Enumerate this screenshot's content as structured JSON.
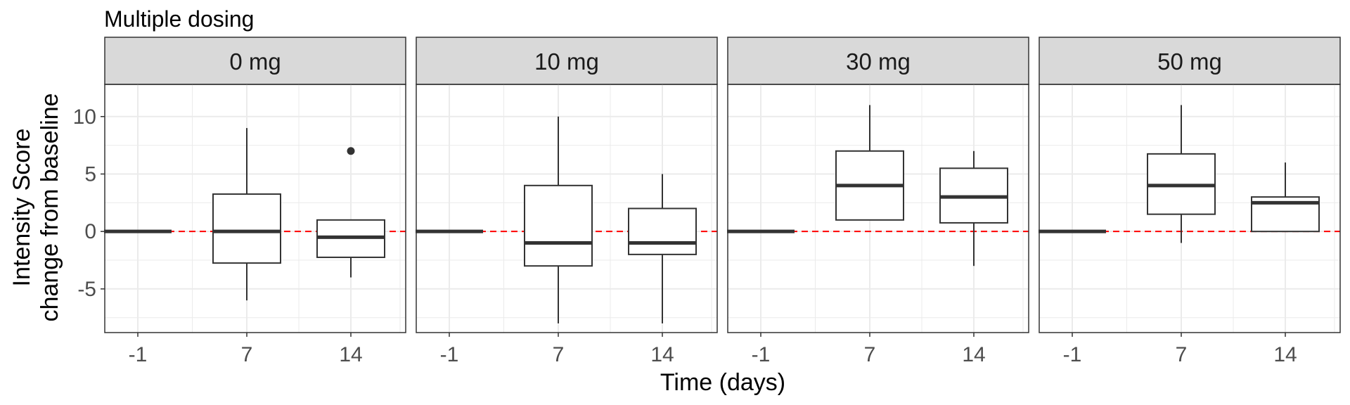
{
  "chart_data": {
    "type": "boxplot",
    "title": "Multiple dosing",
    "xlabel": "Time (days)",
    "ylabel_line1": "Intensity Score",
    "ylabel_line2": "change from baseline",
    "x_categories": [
      "-1",
      "7",
      "14"
    ],
    "y_ticks": [
      10,
      5,
      0,
      -5
    ],
    "ylim": [
      -8.8,
      12.8
    ],
    "reference_line": {
      "y": 0,
      "color": "#ff0000",
      "style": "dashed"
    },
    "grid": true,
    "colors": {
      "strip_bg": "#d9d9d9",
      "box_line": "#333333",
      "grid": "#ebebeb",
      "panel_border": "#333333"
    },
    "panels": [
      {
        "label": "0 mg",
        "boxes": [
          {
            "x": "-1",
            "lower_whisker": 0,
            "q1": 0,
            "median": 0,
            "q3": 0,
            "upper_whisker": 0,
            "outliers": []
          },
          {
            "x": "7",
            "lower_whisker": -6,
            "q1": -2.75,
            "median": 0,
            "q3": 3.25,
            "upper_whisker": 9,
            "outliers": []
          },
          {
            "x": "14",
            "lower_whisker": -4,
            "q1": -2.25,
            "median": -0.5,
            "q3": 1,
            "upper_whisker": 1,
            "outliers": [
              7
            ]
          }
        ]
      },
      {
        "label": "10 mg",
        "boxes": [
          {
            "x": "-1",
            "lower_whisker": 0,
            "q1": 0,
            "median": 0,
            "q3": 0,
            "upper_whisker": 0,
            "outliers": []
          },
          {
            "x": "7",
            "lower_whisker": -8,
            "q1": -3,
            "median": -1,
            "q3": 4,
            "upper_whisker": 10,
            "outliers": []
          },
          {
            "x": "14",
            "lower_whisker": -8,
            "q1": -2,
            "median": -1,
            "q3": 2,
            "upper_whisker": 5,
            "outliers": []
          }
        ]
      },
      {
        "label": "30 mg",
        "boxes": [
          {
            "x": "-1",
            "lower_whisker": 0,
            "q1": 0,
            "median": 0,
            "q3": 0,
            "upper_whisker": 0,
            "outliers": []
          },
          {
            "x": "7",
            "lower_whisker": 1,
            "q1": 1,
            "median": 4,
            "q3": 7,
            "upper_whisker": 11,
            "outliers": []
          },
          {
            "x": "14",
            "lower_whisker": -3,
            "q1": 0.75,
            "median": 3,
            "q3": 5.5,
            "upper_whisker": 7,
            "outliers": []
          }
        ]
      },
      {
        "label": "50 mg",
        "boxes": [
          {
            "x": "-1",
            "lower_whisker": 0,
            "q1": 0,
            "median": 0,
            "q3": 0,
            "upper_whisker": 0,
            "outliers": []
          },
          {
            "x": "7",
            "lower_whisker": -1,
            "q1": 1.5,
            "median": 4,
            "q3": 6.75,
            "upper_whisker": 11,
            "outliers": []
          },
          {
            "x": "14",
            "lower_whisker": 0,
            "q1": 0,
            "median": 2.5,
            "q3": 3,
            "upper_whisker": 6,
            "outliers": []
          }
        ]
      }
    ]
  }
}
